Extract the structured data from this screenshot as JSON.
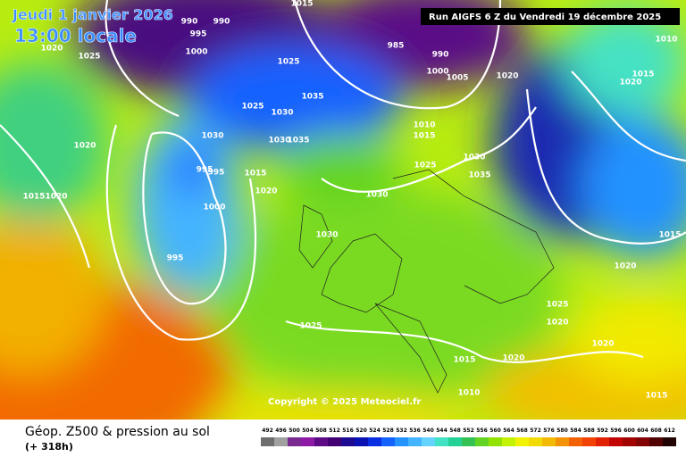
{
  "header": {
    "date": "Jeudi 1 janvier 2026",
    "time": "13:00 locale",
    "run": "Run AIGFS 6 Z du Vendredi 19 décembre 2025"
  },
  "copyright": "Copyright © 2025 Meteociel.fr",
  "legend": {
    "title": "Géop. Z500 & pression au sol",
    "lead": "(+ 318h)",
    "scale": [
      492,
      496,
      500,
      504,
      508,
      512,
      516,
      520,
      524,
      528,
      532,
      536,
      540,
      544,
      548,
      552,
      556,
      560,
      564,
      568,
      572,
      576,
      580,
      584,
      588,
      592,
      596,
      600,
      604,
      608,
      612
    ],
    "colors": [
      "#6e6e6e",
      "#a0a0a0",
      "#7a2a90",
      "#8c1aa6",
      "#5e0a86",
      "#420072",
      "#1c0a92",
      "#0a12b4",
      "#0a2ee2",
      "#1462ff",
      "#2492ff",
      "#44b4ff",
      "#64d4ff",
      "#44e2c4",
      "#24d296",
      "#34c254",
      "#64d424",
      "#94e204",
      "#c4f204",
      "#f2f204",
      "#f2da04",
      "#f2ba04",
      "#f29204",
      "#f26204",
      "#f24204",
      "#e22204",
      "#c20404",
      "#a20404",
      "#820404",
      "#520404",
      "#220404"
    ]
  },
  "isobar_labels": [
    1020,
    1025,
    990,
    990,
    995,
    1000,
    1015,
    985,
    990,
    1000,
    1005,
    1020,
    1025,
    1035,
    1025,
    1030,
    1030,
    1030,
    1035,
    1020,
    1010,
    1015,
    1025,
    1030,
    1035,
    995,
    995,
    1015,
    1020,
    1000,
    995,
    1015,
    1020,
    1030,
    1030,
    1010,
    1015,
    1020,
    1015,
    1020,
    1025,
    1020,
    1020,
    1025,
    1015,
    1020,
    1010,
    1015
  ]
}
